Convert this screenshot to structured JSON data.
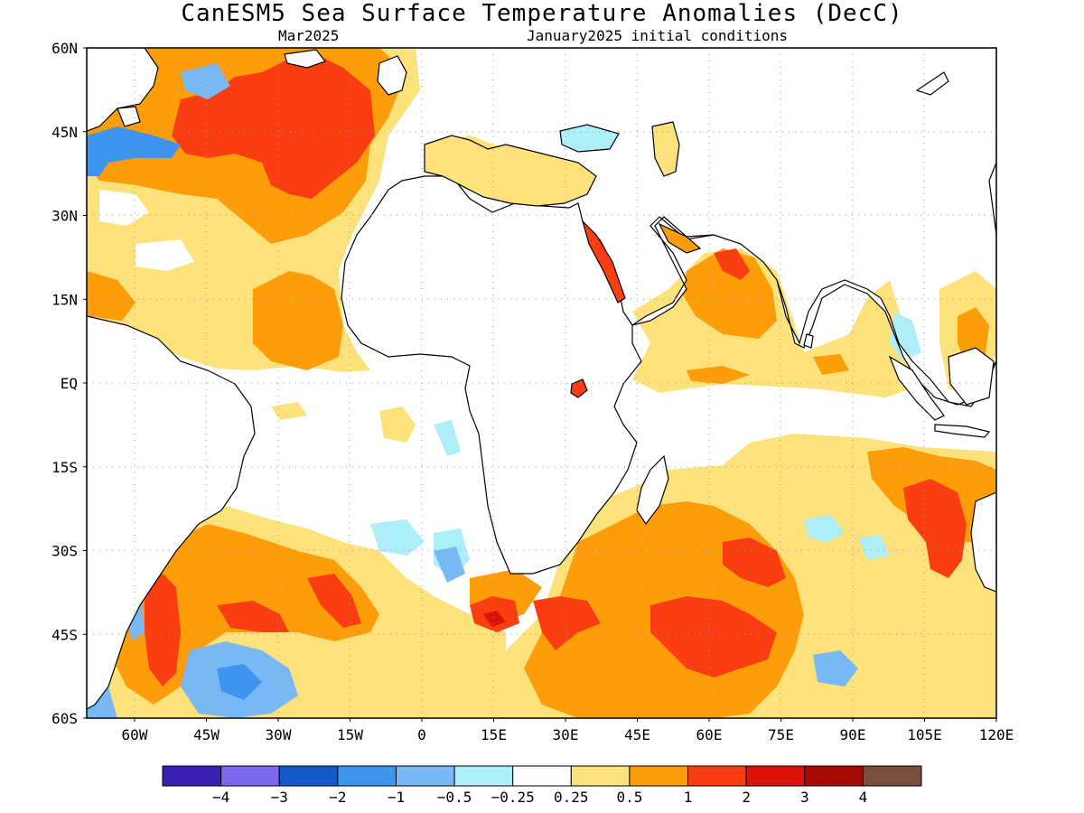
{
  "title": "CanESM5 Sea Surface Temperature Anomalies (DecC)",
  "subtitle_left": "Mar2025",
  "subtitle_right": "January2025 initial conditions",
  "map": {
    "lon_range": [
      -70,
      120
    ],
    "lat_range": [
      -60,
      60
    ],
    "lat_ticks": [
      "60N",
      "45N",
      "30N",
      "15N",
      "EQ",
      "15S",
      "30S",
      "45S",
      "60S"
    ],
    "lon_ticks": [
      "60W",
      "45W",
      "30W",
      "15W",
      "0",
      "15E",
      "30E",
      "45E",
      "60E",
      "75E",
      "90E",
      "105E",
      "120E"
    ],
    "grid": "dotted"
  },
  "colorbar": {
    "colors": [
      "#3a1fb5",
      "#7b68ee",
      "#1558c8",
      "#3e95f0",
      "#78b8f5",
      "#aeeef8",
      "#ffffff",
      "#fde17a",
      "#fd9d0a",
      "#fa3e12",
      "#dc1208",
      "#a70a05",
      "#7a4d3f"
    ],
    "labels": [
      "−4",
      "−3",
      "−2",
      "−1",
      "−0.5",
      "−0.25",
      "0.25",
      "0.5",
      "1",
      "2",
      "3",
      "4"
    ]
  },
  "colors": {
    "land": "#ffffff",
    "coast": "#000000",
    "grid": "#999999"
  }
}
